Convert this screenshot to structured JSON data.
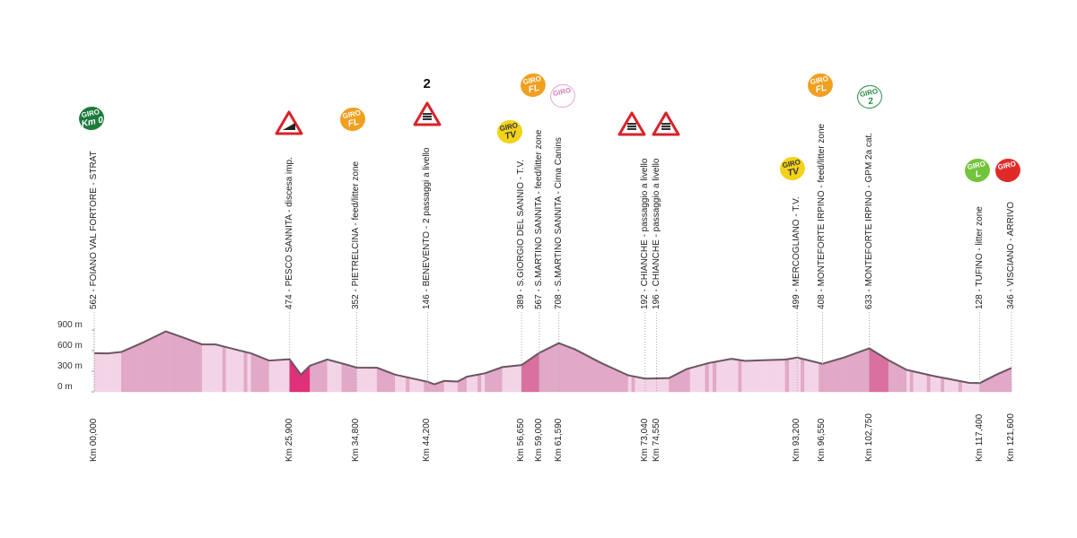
{
  "chart_data": {
    "type": "area",
    "title": "",
    "xlabel": "",
    "ylabel": "",
    "ylim": [
      0,
      900
    ],
    "xlim": [
      0,
      121.6
    ],
    "y_ticks": [
      "0 m",
      "300 m",
      "600 m",
      "900 m"
    ],
    "y_tick_values": [
      0,
      300,
      600,
      900
    ],
    "fill_color": "#f3d4e6",
    "steep_colors": [
      "#f3d4e6",
      "#e2a8c8",
      "#d9709f",
      "#e0307a"
    ],
    "line_color": "#6b5560",
    "profile": [
      [
        0,
        562
      ],
      [
        1.8,
        560
      ],
      [
        3.6,
        580
      ],
      [
        6.5,
        720
      ],
      [
        9.5,
        880
      ],
      [
        11.3,
        810
      ],
      [
        14.3,
        690
      ],
      [
        16.1,
        690
      ],
      [
        18.4,
        625
      ],
      [
        20.8,
        560
      ],
      [
        23.2,
        455
      ],
      [
        25.9,
        474
      ],
      [
        27.4,
        250
      ],
      [
        28.6,
        380
      ],
      [
        30.9,
        470
      ],
      [
        33.3,
        400
      ],
      [
        34.8,
        352
      ],
      [
        37.5,
        350
      ],
      [
        39.9,
        250
      ],
      [
        44.2,
        146
      ],
      [
        45.1,
        110
      ],
      [
        46.4,
        160
      ],
      [
        48.2,
        150
      ],
      [
        49.4,
        220
      ],
      [
        51.8,
        270
      ],
      [
        54.1,
        360
      ],
      [
        56.65,
        389
      ],
      [
        59.0,
        567
      ],
      [
        61.59,
        708
      ],
      [
        63.7,
        620
      ],
      [
        67.2,
        420
      ],
      [
        70.8,
        240
      ],
      [
        73.04,
        192
      ],
      [
        74.55,
        196
      ],
      [
        76.2,
        200
      ],
      [
        78.5,
        330
      ],
      [
        81.5,
        420
      ],
      [
        84.5,
        480
      ],
      [
        86.3,
        450
      ],
      [
        88.6,
        460
      ],
      [
        91.6,
        470
      ],
      [
        93.2,
        499
      ],
      [
        96.55,
        408
      ],
      [
        99.4,
        500
      ],
      [
        102.75,
        633
      ],
      [
        105.3,
        460
      ],
      [
        107.7,
        320
      ],
      [
        111.3,
        230
      ],
      [
        116.0,
        130
      ],
      [
        117.4,
        128
      ],
      [
        119.6,
        250
      ],
      [
        121.6,
        346
      ]
    ],
    "waypoints": [
      {
        "km": 0,
        "km_label": "Km 00,000",
        "label": "562 - FOIANO  VAL FORTORE - STRAT",
        "icon": "giro-km0-icon",
        "icon_text": [
          "GIRO",
          "Km 0"
        ],
        "color": "#1e7a3c"
      },
      {
        "km": 25.9,
        "km_label": "Km 25,900",
        "label": "474 - PESCO SANNITA - discesa imp.",
        "icon": "steep-descent-warning-icon"
      },
      {
        "km": 34.8,
        "km_label": "Km 34,800",
        "label": "352 - PIETRELCINA - feed/litter zone",
        "icon": "giro-feed-zone-icon",
        "icon_text": [
          "GIRO",
          "FL"
        ],
        "color": "#f0a020"
      },
      {
        "km": 44.2,
        "km_label": "Km 44,200",
        "label": "146 - BENEVENTO - 2 passaggi a livello",
        "icon": "level-crossing-warning-icon",
        "count": "2"
      },
      {
        "km": 56.65,
        "km_label": "Km 56,650",
        "label": "389 - S.GIORGIO DEL SANNIO - T.V.",
        "icon": "giro-tv-icon",
        "icon_text": [
          "GIRO",
          "TV"
        ],
        "color": "#f2d21b"
      },
      {
        "km": 59.0,
        "km_label": "Km 59,000",
        "label": "567 - S.MARTINO SANNITA - feed/litter zone",
        "icon": "giro-feed-zone-icon",
        "icon_text": [
          "GIRO",
          "FL"
        ],
        "color": "#f0a020"
      },
      {
        "km": 61.59,
        "km_label": "Km 61,590",
        "label": "708 - S.MARTINO SANNITA  - Cima Canins",
        "icon": "giro-cima-icon",
        "icon_text": [
          "GIRO",
          ""
        ],
        "color": "#f4c6e2"
      },
      {
        "km": 73.04,
        "km_label": "Km 73,040",
        "label": "192 - CHIANCHE - passaggio a livello",
        "icon": "level-crossing-warning-icon"
      },
      {
        "km": 74.55,
        "km_label": "Km 74,550",
        "label": "196 - CHIANCHE - passaggio a livello",
        "icon": "level-crossing-warning-icon"
      },
      {
        "km": 93.2,
        "km_label": "Km 93,200",
        "label": "499 - MERCOGLIANO - T.V.",
        "icon": "giro-tv-icon",
        "icon_text": [
          "GIRO",
          "TV"
        ],
        "color": "#f2d21b"
      },
      {
        "km": 96.55,
        "km_label": "Km 96,550",
        "label": "408 - MONTEFORTE IRPINO - feed/litter zone",
        "icon": "giro-feed-zone-icon",
        "icon_text": [
          "GIRO",
          "FL"
        ],
        "color": "#f0a020"
      },
      {
        "km": 102.75,
        "km_label": "Km 102,750",
        "label": "633 - MONTEFORTE IRPINO - GPM 2a cat.",
        "icon": "giro-gpm-icon",
        "icon_text": [
          "GIRO",
          "2"
        ],
        "color": "#2a8a45"
      },
      {
        "km": 117.4,
        "km_label": "Km 117,400",
        "label": "128 - TUFINO - litter zone",
        "icon": "giro-litter-zone-icon",
        "icon_text": [
          "GIRO",
          "L"
        ],
        "color": "#72c43a"
      },
      {
        "km": 121.6,
        "km_label": "Km 121,600",
        "label": "346 - VISCIANO - ARRIVO",
        "icon": "giro-finish-icon",
        "icon_text": [
          "GIRO",
          ""
        ],
        "color": "#e02a2a"
      }
    ]
  }
}
